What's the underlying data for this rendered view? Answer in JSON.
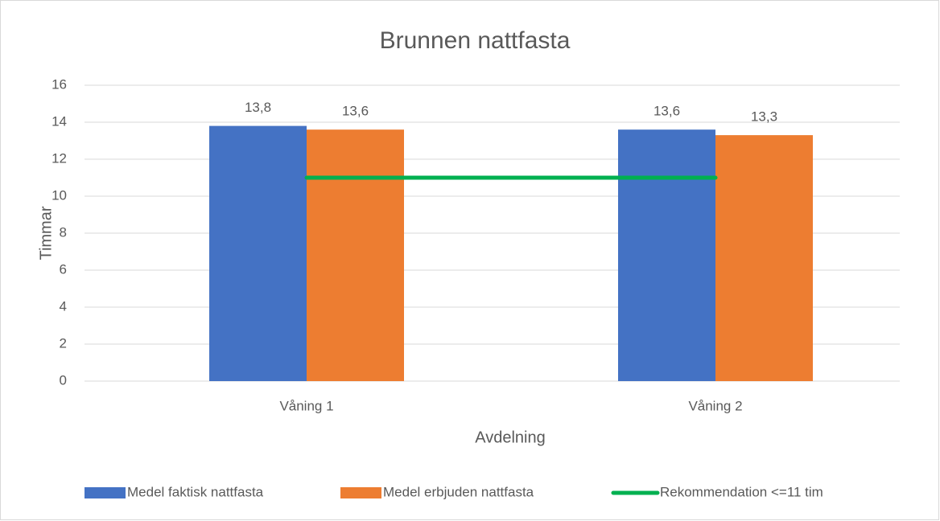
{
  "chart_data": {
    "type": "bar",
    "title": "Brunnen nattfasta",
    "x_label": "Avdelning",
    "y_label": "Timmar",
    "categories": [
      "Våning 1",
      "Våning 2"
    ],
    "series": [
      {
        "name": "Medel faktisk nattfasta",
        "color": "#4472c4",
        "values": [
          13.8,
          13.6
        ],
        "value_labels": [
          "13,8",
          "13,6"
        ]
      },
      {
        "name": "Medel erbjuden nattfasta",
        "color": "#ed7d31",
        "values": [
          13.6,
          13.3
        ],
        "value_labels": [
          "13,6",
          "13,3"
        ]
      },
      {
        "name": "Rekommendation <=11 tim",
        "color": "#00b050",
        "type": "line",
        "values": [
          11,
          11
        ]
      }
    ],
    "ylim": [
      0,
      16
    ],
    "yticks": [
      0,
      2,
      4,
      6,
      8,
      10,
      12,
      14,
      16
    ],
    "grid": true,
    "legend": "bottom"
  }
}
